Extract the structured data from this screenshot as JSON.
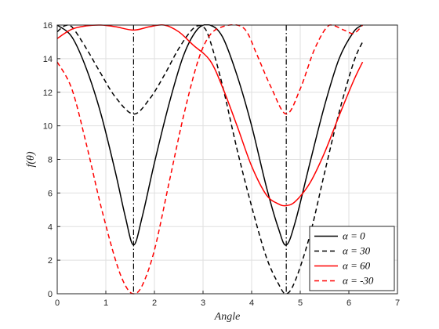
{
  "chart_data": {
    "type": "line",
    "xlabel": "Angle",
    "ylabel": "f(θ)",
    "xlim": [
      0,
      7
    ],
    "ylim": [
      0,
      16
    ],
    "xticks": [
      "0",
      "1",
      "2",
      "3",
      "4",
      "5",
      "6",
      "7"
    ],
    "yticks": [
      "0",
      "2",
      "4",
      "6",
      "8",
      "10",
      "12",
      "14",
      "16"
    ],
    "grid": true,
    "legend_position": "bottom-right",
    "vlines": [
      {
        "x": 1.5708,
        "style": "dashdot",
        "color": "#000000"
      },
      {
        "x": 4.7124,
        "style": "dashdot",
        "color": "#000000"
      }
    ],
    "series": [
      {
        "name": "α = 0",
        "color": "#000000",
        "style": "solid",
        "x": [
          0,
          0.3,
          0.6,
          0.9,
          1.2,
          1.4,
          1.5708,
          1.75,
          2.0,
          2.3,
          2.6,
          2.9,
          3.14159,
          3.4,
          3.7,
          4.0,
          4.3,
          4.55,
          4.7124,
          4.9,
          5.2,
          5.5,
          5.8,
          6.1,
          6.2832
        ],
        "y": [
          16.0,
          15.3,
          13.4,
          10.7,
          7.2,
          4.6,
          2.9,
          4.6,
          7.8,
          11.3,
          14.2,
          15.8,
          16.0,
          15.3,
          13.0,
          10.0,
          6.4,
          3.9,
          2.9,
          4.3,
          7.8,
          11.2,
          14.0,
          15.6,
          16.0
        ]
      },
      {
        "name": "α = 30",
        "color": "#000000",
        "style": "dashed",
        "x": [
          0,
          0.15,
          0.3,
          0.6,
          0.9,
          1.2,
          1.5708,
          1.9,
          2.2,
          2.5,
          2.8,
          3.0,
          3.14159,
          3.4,
          3.7,
          4.0,
          4.3,
          4.55,
          4.7124,
          4.9,
          5.2,
          5.5,
          5.8,
          6.1,
          6.2832
        ],
        "y": [
          15.6,
          15.95,
          15.9,
          14.6,
          13.1,
          11.7,
          10.7,
          11.6,
          13.0,
          14.6,
          15.8,
          15.9,
          15.1,
          12.4,
          8.6,
          5.2,
          2.2,
          0.6,
          0.0,
          0.8,
          3.5,
          7.2,
          10.8,
          13.8,
          15.0
        ]
      },
      {
        "name": "α = 60",
        "color": "#ff0000",
        "style": "solid",
        "x": [
          0,
          0.3,
          0.6,
          0.9,
          1.2,
          1.5708,
          1.9,
          2.2,
          2.5,
          2.8,
          3.14159,
          3.4,
          3.7,
          4.0,
          4.3,
          4.55,
          4.7124,
          4.9,
          5.2,
          5.5,
          5.8,
          6.1,
          6.2832
        ],
        "y": [
          15.2,
          15.75,
          15.95,
          16.0,
          15.9,
          15.7,
          15.9,
          16.0,
          15.6,
          14.8,
          13.9,
          12.3,
          10.0,
          7.6,
          5.9,
          5.35,
          5.25,
          5.5,
          6.6,
          8.4,
          10.6,
          12.7,
          13.8
        ]
      },
      {
        "name": "α = -30",
        "color": "#ff0000",
        "style": "dashed",
        "x": [
          0,
          0.3,
          0.6,
          0.9,
          1.2,
          1.4,
          1.5708,
          1.75,
          2.0,
          2.3,
          2.6,
          2.9,
          3.14159,
          3.4,
          3.7,
          3.9,
          4.1,
          4.4,
          4.7124,
          5.0,
          5.3,
          5.6,
          5.9,
          6.1,
          6.2832
        ],
        "y": [
          13.8,
          12.2,
          8.9,
          5.2,
          2.0,
          0.5,
          0.0,
          0.5,
          2.6,
          6.6,
          10.6,
          13.9,
          15.4,
          15.9,
          16.0,
          15.6,
          14.3,
          12.3,
          10.7,
          12.2,
          14.6,
          16.0,
          15.7,
          15.5,
          16.0
        ]
      }
    ]
  }
}
